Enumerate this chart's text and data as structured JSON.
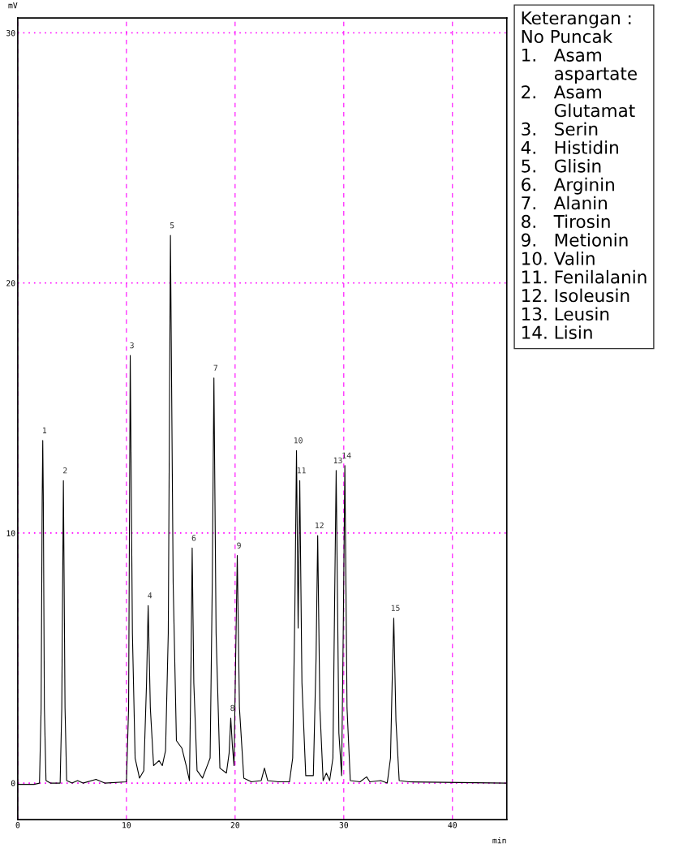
{
  "chart_data": {
    "type": "line",
    "xlabel": "min",
    "ylabel": "mV",
    "xlim": [
      0,
      45
    ],
    "ylim": [
      -1.46,
      30.6
    ],
    "xticks": [
      0,
      10,
      20,
      30,
      40
    ],
    "yticks": [
      0,
      10,
      20,
      30
    ],
    "grid": true,
    "series": [
      {
        "color": "#000000",
        "x": [
          0,
          1.5,
          2.0,
          2.15,
          2.25,
          2.3,
          2.35,
          2.45,
          2.6,
          3.0,
          3.9,
          4.05,
          4.2,
          4.35,
          4.5,
          5.0,
          5.5,
          6,
          7.2,
          8,
          10.0,
          10.2,
          10.35,
          10.55,
          10.8,
          11.2,
          11.6,
          11.85,
          12.0,
          12.2,
          12.5,
          13.0,
          13.3,
          13.6,
          13.85,
          14.05,
          14.3,
          14.6,
          15.1,
          15.5,
          15.8,
          15.95,
          16.05,
          16.2,
          16.5,
          17.0,
          17.7,
          17.9,
          18.05,
          18.25,
          18.6,
          19.2,
          19.45,
          19.6,
          19.75,
          19.9,
          20.05,
          20.2,
          20.4,
          20.8,
          21.5,
          22.4,
          22.7,
          23.0,
          24.0,
          25.0,
          25.3,
          25.5,
          25.65,
          25.8,
          25.95,
          26.15,
          26.5,
          27.2,
          27.45,
          27.6,
          27.8,
          28.1,
          28.4,
          28.7,
          29.0,
          29.15,
          29.3,
          29.55,
          29.8,
          29.95,
          30.1,
          30.3,
          30.6,
          31.5,
          32.1,
          32.4,
          33.4,
          34.0,
          34.3,
          34.45,
          34.6,
          34.8,
          35.1,
          36.0,
          45
        ],
        "values": [
          -0.05,
          -0.05,
          0.0,
          3,
          11.5,
          13.7,
          11.5,
          3,
          0.1,
          0.0,
          0.0,
          3,
          12.1,
          3,
          0.1,
          0.0,
          0.1,
          0.0,
          0.15,
          0.0,
          0.05,
          3,
          17.1,
          6,
          1,
          0.2,
          0.5,
          4,
          7.1,
          3,
          0.7,
          0.9,
          0.7,
          1.3,
          6,
          21.9,
          8,
          1.7,
          1.4,
          0.7,
          0.1,
          5,
          9.4,
          4,
          0.5,
          0.2,
          1,
          8,
          16.2,
          6,
          0.6,
          0.4,
          1.2,
          2.6,
          1.5,
          0.7,
          5,
          9.1,
          3,
          0.2,
          0.05,
          0.1,
          0.6,
          0.1,
          0.05,
          0.05,
          1,
          7,
          13.3,
          6.2,
          12.1,
          4,
          0.3,
          0.3,
          5,
          9.9,
          3,
          0.1,
          0.4,
          0.1,
          1,
          7,
          12.5,
          2,
          0.3,
          6,
          12.7,
          3,
          0.1,
          0.05,
          0.25,
          0.05,
          0.1,
          0.0,
          1,
          4,
          6.6,
          2.5,
          0.1,
          0.05,
          0.0
        ]
      }
    ],
    "annotations": [
      {
        "text": "1",
        "x": 2.3,
        "y": 13.7
      },
      {
        "text": "2",
        "x": 4.2,
        "y": 12.1
      },
      {
        "text": "3",
        "x": 10.35,
        "y": 17.1
      },
      {
        "text": "4",
        "x": 12.0,
        "y": 7.1
      },
      {
        "text": "5",
        "x": 14.05,
        "y": 21.9
      },
      {
        "text": "6",
        "x": 16.05,
        "y": 9.4
      },
      {
        "text": "7",
        "x": 18.05,
        "y": 16.2
      },
      {
        "text": "8",
        "x": 19.6,
        "y": 2.6
      },
      {
        "text": "9",
        "x": 20.2,
        "y": 9.1
      },
      {
        "text": "10",
        "x": 25.65,
        "y": 13.3
      },
      {
        "text": "11",
        "x": 25.95,
        "y": 12.1
      },
      {
        "text": "12",
        "x": 27.6,
        "y": 9.9
      },
      {
        "text": "13",
        "x": 29.3,
        "y": 12.5
      },
      {
        "text": "14",
        "x": 30.1,
        "y": 12.7
      },
      {
        "text": "15",
        "x": 34.6,
        "y": 6.6
      },
      "Keterangan :\nNo Puncak\n1.   Asam\n      aspartate\n2.   Asam\n      Glutamat\n3.   Serin\n4.   Histidin\n5.   Glisin\n6.   Arginin\n7.   Alanin\n8.   Tirosin\n9.   Metionin\n10. Valin\n11. Fenilalanin\n12. Isoleusin\n13. Leusin\n14. Lisin"
    ]
  }
}
